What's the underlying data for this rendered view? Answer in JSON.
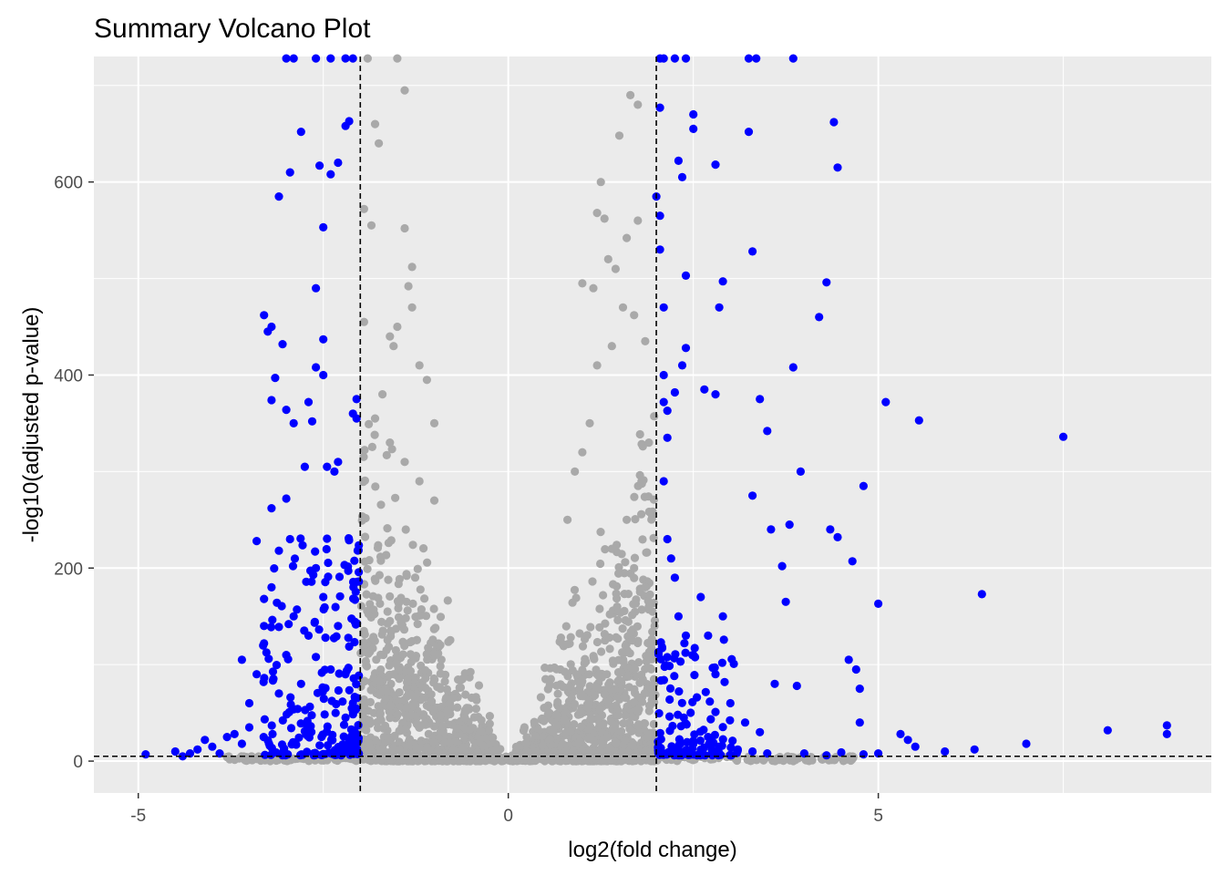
{
  "chart_data": {
    "type": "scatter",
    "title": "Summary Volcano Plot",
    "xlabel": "log2(fold change)",
    "ylabel": "-log10(adjusted p-value)",
    "xlim": [
      -5.6,
      9.5
    ],
    "ylim": [
      -33,
      730
    ],
    "x_ticks": [
      -5,
      0,
      5
    ],
    "x_tick_labels": [
      "-5",
      "0",
      "5"
    ],
    "y_ticks": [
      0,
      200,
      400,
      600
    ],
    "y_tick_labels": [
      "0",
      "200",
      "400",
      "600"
    ],
    "thresholds": {
      "log2fc": [
        -2,
        2
      ],
      "neg_log10_p": 5
    },
    "grid": true,
    "legend": "none",
    "colors": {
      "panel_background": "#ebebeb",
      "grid_line": "#ffffff",
      "significant": "#0000ff",
      "not_significant": "#a9a9a9",
      "threshold_line": "#000000"
    },
    "series": [
      {
        "key": "significant",
        "color": "#0000ff",
        "points": [
          [
            -4.9,
            7
          ],
          [
            -4.5,
            10
          ],
          [
            -4.4,
            5
          ],
          [
            -4.3,
            8
          ],
          [
            -4.2,
            12
          ],
          [
            -4.1,
            22
          ],
          [
            -4.0,
            15
          ],
          [
            -3.9,
            8
          ],
          [
            -3.7,
            28
          ],
          [
            -3.6,
            105
          ],
          [
            -3.5,
            35
          ],
          [
            -3.4,
            228
          ],
          [
            -3.3,
            462
          ],
          [
            -3.3,
            168
          ],
          [
            -3.3,
            122
          ],
          [
            -3.25,
            445
          ],
          [
            -3.2,
            450
          ],
          [
            -3.2,
            374
          ],
          [
            -3.2,
            262
          ],
          [
            -3.15,
            397
          ],
          [
            -3.1,
            585
          ],
          [
            -3.1,
            218
          ],
          [
            -3.05,
            432
          ],
          [
            -3.0,
            364
          ],
          [
            -3.0,
            272
          ],
          [
            -2.95,
            610
          ],
          [
            -2.95,
            230
          ],
          [
            -2.9,
            350
          ],
          [
            -2.8,
            652
          ],
          [
            -2.75,
            305
          ],
          [
            -2.7,
            372
          ],
          [
            -2.65,
            352
          ],
          [
            -2.6,
            490
          ],
          [
            -2.6,
            408
          ],
          [
            -2.55,
            617
          ],
          [
            -2.5,
            437
          ],
          [
            -2.5,
            400
          ],
          [
            -2.5,
            553
          ],
          [
            -2.45,
            305
          ],
          [
            -2.4,
            608
          ],
          [
            -2.35,
            300
          ],
          [
            -2.3,
            620
          ],
          [
            -2.3,
            310
          ],
          [
            -2.2,
            658
          ],
          [
            -2.15,
            663
          ],
          [
            -2.1,
            360
          ],
          [
            -2.05,
            375
          ],
          [
            -2.05,
            355
          ],
          [
            -3.8,
            25
          ],
          [
            -3.6,
            18
          ],
          [
            -3.5,
            60
          ],
          [
            -3.4,
            90
          ],
          [
            -3.3,
            140
          ],
          [
            -3.2,
            180
          ],
          [
            -3.1,
            70
          ],
          [
            -3.0,
            110
          ],
          [
            -2.9,
            150
          ],
          [
            -2.8,
            80
          ],
          [
            -2.7,
            130
          ],
          [
            -2.6,
            200
          ],
          [
            -2.5,
            170
          ],
          [
            -2.4,
            95
          ],
          [
            -2.3,
            140
          ],
          [
            -2.2,
            45
          ],
          [
            -2.1,
            60
          ],
          [
            -3.0,
            728
          ],
          [
            -2.9,
            728
          ],
          [
            -2.6,
            728
          ],
          [
            -2.4,
            728
          ],
          [
            -2.2,
            728
          ],
          [
            -2.1,
            728
          ],
          [
            2.05,
            728
          ],
          [
            2.1,
            728
          ],
          [
            2.25,
            728
          ],
          [
            2.4,
            728
          ],
          [
            3.25,
            728
          ],
          [
            3.35,
            728
          ],
          [
            3.85,
            728
          ],
          [
            2.0,
            585
          ],
          [
            2.05,
            565
          ],
          [
            2.05,
            677
          ],
          [
            2.05,
            530
          ],
          [
            2.1,
            470
          ],
          [
            2.1,
            400
          ],
          [
            2.1,
            372
          ],
          [
            2.15,
            363
          ],
          [
            2.15,
            335
          ],
          [
            2.25,
            382
          ],
          [
            2.3,
            622
          ],
          [
            2.35,
            605
          ],
          [
            2.4,
            503
          ],
          [
            2.4,
            428
          ],
          [
            2.35,
            410
          ],
          [
            2.5,
            655
          ],
          [
            2.5,
            670
          ],
          [
            2.65,
            385
          ],
          [
            2.8,
            618
          ],
          [
            2.8,
            380
          ],
          [
            2.85,
            470
          ],
          [
            2.9,
            497
          ],
          [
            3.25,
            652
          ],
          [
            3.3,
            528
          ],
          [
            3.3,
            275
          ],
          [
            3.4,
            375
          ],
          [
            3.5,
            342
          ],
          [
            3.55,
            240
          ],
          [
            3.7,
            202
          ],
          [
            3.8,
            245
          ],
          [
            3.85,
            408
          ],
          [
            3.95,
            300
          ],
          [
            4.2,
            460
          ],
          [
            4.3,
            496
          ],
          [
            4.35,
            240
          ],
          [
            4.4,
            662
          ],
          [
            4.45,
            615
          ],
          [
            4.45,
            232
          ],
          [
            4.65,
            207
          ],
          [
            4.8,
            285
          ],
          [
            5.0,
            163
          ],
          [
            5.1,
            372
          ],
          [
            5.55,
            353
          ],
          [
            6.4,
            173
          ],
          [
            7.5,
            336
          ],
          [
            8.1,
            32
          ],
          [
            8.9,
            37
          ],
          [
            8.9,
            28
          ],
          [
            7.0,
            18
          ],
          [
            6.3,
            12
          ],
          [
            5.9,
            10
          ],
          [
            5.5,
            15
          ],
          [
            5.4,
            22
          ],
          [
            5.3,
            28
          ],
          [
            2.1,
            290
          ],
          [
            2.15,
            230
          ],
          [
            2.2,
            210
          ],
          [
            2.25,
            190
          ],
          [
            2.3,
            150
          ],
          [
            2.4,
            130
          ],
          [
            2.5,
            110
          ],
          [
            2.6,
            170
          ],
          [
            2.7,
            130
          ],
          [
            2.8,
            90
          ],
          [
            2.9,
            150
          ],
          [
            3.0,
            60
          ],
          [
            3.2,
            40
          ],
          [
            3.4,
            30
          ],
          [
            3.6,
            80
          ],
          [
            3.75,
            165
          ],
          [
            3.9,
            78
          ],
          [
            4.6,
            105
          ],
          [
            4.7,
            95
          ],
          [
            4.75,
            75
          ],
          [
            4.75,
            40
          ],
          [
            4.0,
            8
          ],
          [
            4.3,
            6
          ],
          [
            4.5,
            9
          ],
          [
            4.8,
            7
          ],
          [
            5.0,
            8
          ],
          [
            3.1,
            12
          ],
          [
            3.3,
            10
          ],
          [
            3.5,
            8
          ],
          [
            2.7,
            25
          ],
          [
            2.5,
            18
          ],
          [
            2.3,
            12
          ],
          [
            2.1,
            8
          ]
        ]
      },
      {
        "key": "not_significant",
        "color": "#a9a9a9",
        "points": [
          [
            -1.9,
            728
          ],
          [
            -1.5,
            728
          ],
          [
            -1.4,
            695
          ],
          [
            -1.8,
            660
          ],
          [
            -1.75,
            640
          ],
          [
            -1.95,
            572
          ],
          [
            -1.85,
            555
          ],
          [
            -1.4,
            552
          ],
          [
            -1.3,
            512
          ],
          [
            -1.35,
            492
          ],
          [
            -1.3,
            470
          ],
          [
            -1.95,
            455
          ],
          [
            -1.6,
            440
          ],
          [
            -1.55,
            430
          ],
          [
            -1.5,
            450
          ],
          [
            -1.2,
            410
          ],
          [
            -1.1,
            395
          ],
          [
            -1.0,
            350
          ],
          [
            -1.7,
            380
          ],
          [
            -1.8,
            355
          ],
          [
            -1.6,
            330
          ],
          [
            -1.4,
            310
          ],
          [
            -1.2,
            290
          ],
          [
            -1.0,
            270
          ],
          [
            1.65,
            690
          ],
          [
            1.75,
            680
          ],
          [
            1.5,
            648
          ],
          [
            1.25,
            600
          ],
          [
            1.2,
            568
          ],
          [
            1.3,
            562
          ],
          [
            1.75,
            560
          ],
          [
            1.6,
            542
          ],
          [
            1.45,
            510
          ],
          [
            1.35,
            520
          ],
          [
            1.0,
            495
          ],
          [
            1.15,
            490
          ],
          [
            1.55,
            470
          ],
          [
            1.7,
            462
          ],
          [
            1.85,
            435
          ],
          [
            1.4,
            430
          ],
          [
            1.2,
            410
          ],
          [
            1.9,
            330
          ],
          [
            1.8,
            290
          ],
          [
            1.6,
            250
          ],
          [
            1.4,
            220
          ],
          [
            1.1,
            350
          ],
          [
            1.0,
            320
          ],
          [
            0.9,
            300
          ],
          [
            0.8,
            250
          ],
          [
            1.7,
            200
          ],
          [
            1.85,
            180
          ],
          [
            1.9,
            160
          ]
        ]
      }
    ]
  }
}
